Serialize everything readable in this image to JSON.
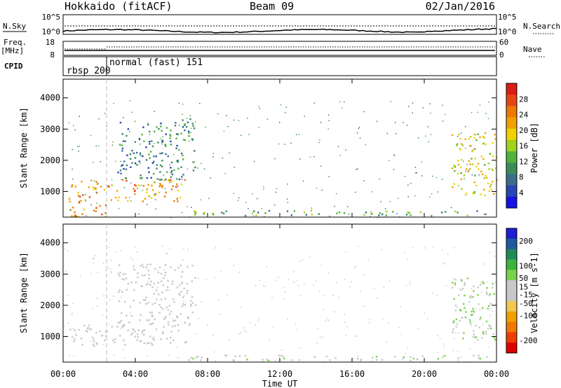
{
  "header": {
    "station": "Hokkaido (fitACF)",
    "beam": "Beam 09",
    "date": "02/Jan/2016"
  },
  "noise_panel": {
    "left_label": "N.Sky",
    "left_ticks": [
      "10^5",
      "10^0"
    ],
    "right_ticks": [
      "10^5",
      "10^0"
    ],
    "right_label": "N.Search"
  },
  "freq_panel": {
    "left_label_1": "Freq.",
    "left_label_2": "[MHz]",
    "left_ticks": [
      "18",
      "8"
    ],
    "right_ticks": [
      "60",
      "0"
    ],
    "right_label": "Nave"
  },
  "cpid_panel": {
    "label": "CPID",
    "segments": [
      {
        "name": "rbsp 200",
        "start_hour": 0,
        "end_hour": 2.4
      },
      {
        "name": "normal (fast) 151",
        "start_hour": 2.4,
        "end_hour": 24
      }
    ]
  },
  "x_axis": {
    "label": "Time UT",
    "ticks": [
      "00:00",
      "04:00",
      "08:00",
      "12:00",
      "16:00",
      "20:00",
      "00:00"
    ],
    "range_hours": [
      0,
      24
    ]
  },
  "chart_data": [
    {
      "type": "heatmap",
      "title": "Power",
      "ylabel": "Slant Range [km]",
      "xlabel": "",
      "ylim": [
        180,
        4600
      ],
      "y_ticks": [
        "1000",
        "2000",
        "3000",
        "4000"
      ],
      "colorbar": {
        "label": "Power [dB]",
        "ticks": [
          "4",
          "8",
          "12",
          "16",
          "20",
          "24",
          "28"
        ],
        "range": [
          0,
          32
        ],
        "colors": [
          "#1414e6",
          "#2846b4",
          "#3c6e8c",
          "#3c8c5a",
          "#50b43c",
          "#a0d21e",
          "#f0d200",
          "#f0a000",
          "#f07800",
          "#e64614",
          "#dc1e14"
        ]
      },
      "regions": [
        {
          "name": "early-echo-band",
          "hours": [
            0.3,
            6.8
          ],
          "range_km": [
            700,
            1400
          ],
          "value_db": 22
        },
        {
          "name": "near-range-echoes",
          "hours": [
            0.3,
            2.4
          ],
          "range_km": [
            200,
            700
          ],
          "value_db": 24
        },
        {
          "name": "morning-scatter",
          "hours": [
            3.0,
            7.3
          ],
          "range_km": [
            1400,
            3350
          ],
          "value_db": 9
        },
        {
          "name": "dayside-near-range",
          "hours": [
            6.6,
            23.6
          ],
          "range_km": [
            250,
            420
          ],
          "value_db": 12
        },
        {
          "name": "evening-arc",
          "hours": [
            21.5,
            24.0
          ],
          "range_km": [
            900,
            2900
          ],
          "value_db": 18
        }
      ]
    },
    {
      "type": "heatmap",
      "title": "Velocity",
      "ylabel": "Slant Range [km]",
      "xlabel": "Time UT",
      "ylim": [
        180,
        4600
      ],
      "y_ticks": [
        "1000",
        "2000",
        "3000",
        "4000"
      ],
      "colorbar": {
        "label": "Velocity [m s-1]",
        "ticks": [
          "200",
          "100",
          "50",
          "15",
          "-15",
          "-50",
          "-100",
          "-200"
        ],
        "range": [
          -250,
          250
        ],
        "colors": [
          "#dc0000",
          "#f03c00",
          "#f07800",
          "#f0a000",
          "#f0c850",
          "#c8c8c8",
          "#c8c8c8",
          "#7ad24a",
          "#3cb43c",
          "#1e8c5a",
          "#1e5aa0",
          "#1e1ed2"
        ]
      },
      "regions": [
        {
          "name": "early-echo-band",
          "hours": [
            0.3,
            6.8
          ],
          "range_km": [
            700,
            1400
          ],
          "value_ms": 0
        },
        {
          "name": "morning-scatter",
          "hours": [
            3.0,
            7.3
          ],
          "range_km": [
            1400,
            3350
          ],
          "value_ms": -5
        },
        {
          "name": "dayside-near-range",
          "hours": [
            6.6,
            23.6
          ],
          "range_km": [
            250,
            420
          ],
          "value_ms": 30
        },
        {
          "name": "evening-arc",
          "hours": [
            21.5,
            24.0
          ],
          "range_km": [
            900,
            2900
          ],
          "value_ms": 40
        }
      ]
    }
  ]
}
